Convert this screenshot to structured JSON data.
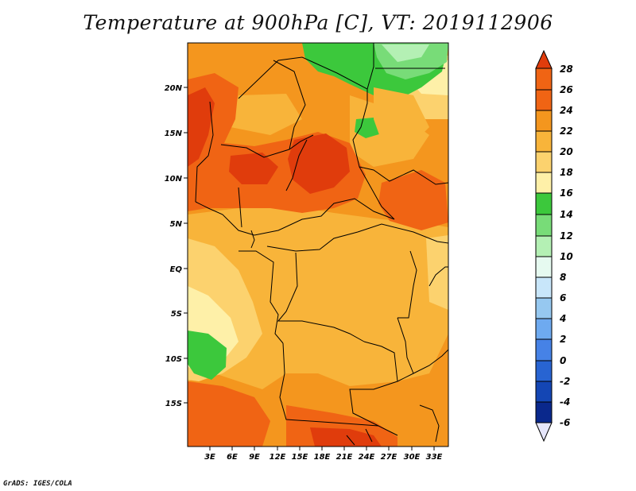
{
  "title": "Temperature at 900hPa [C], VT: 2019112906",
  "credit": "GrADS: IGES/COLA",
  "map": {
    "lat_labels": [
      "20N",
      "15N",
      "10N",
      "5N",
      "EQ",
      "5S",
      "10S",
      "15S"
    ],
    "lon_labels": [
      "3E",
      "6E",
      "9E",
      "12E",
      "15E",
      "18E",
      "21E",
      "24E",
      "27E",
      "30E",
      "33E"
    ]
  },
  "colorbar": {
    "labels": [
      "28",
      "26",
      "24",
      "22",
      "20",
      "18",
      "16",
      "14",
      "12",
      "10",
      "8",
      "6",
      "4",
      "2",
      "0",
      "-2",
      "-4",
      "-6"
    ],
    "colors": {
      "above_26": "#e03c0c",
      "24_26": "#f06414",
      "22_24": "#f4961e",
      "20_22": "#f8b43a",
      "18_20": "#fcd26e",
      "16_18": "#fef0a8",
      "14_16": "#3cc83c",
      "12_14": "#78dc78",
      "10_12": "#b4f0b4",
      "8_10": "#e6faf0",
      "6_8": "#c8e6fa",
      "4_6": "#96c8f0",
      "2_4": "#6eaaf0",
      "0_2": "#4682e6",
      "-2_0": "#2864d2",
      "-4_-2": "#1446b4",
      "-6_-4": "#0a288c",
      "below_-6": "#e6e6fa"
    }
  }
}
